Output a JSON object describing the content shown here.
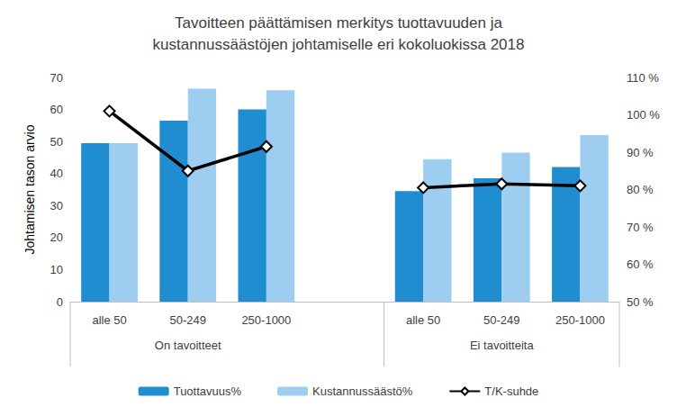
{
  "chart_data": {
    "type": "bar",
    "title": "Tavoitteen päättämisen merkitys tuottavuuden ja\nkustannussäästöjen johtamiselle eri kokoluokissa 2018",
    "y_label": "Johtamisen tason arvio",
    "groups": [
      {
        "label": "On tavoitteet",
        "categories": [
          "alle 50",
          "50-249",
          "250-1000"
        ]
      },
      {
        "label": "Ei tavoitteita",
        "categories": [
          "alle 50",
          "50-249",
          "250-1000"
        ]
      }
    ],
    "series": [
      {
        "name": "Tuottavuus%",
        "type": "bar",
        "color": "#1f8dd0",
        "values": [
          49.5,
          56.5,
          60,
          34.5,
          38.5,
          42
        ]
      },
      {
        "name": "Kustannussäästö%",
        "type": "bar",
        "color": "#9dcdf0",
        "values": [
          49.5,
          66.5,
          66,
          44.5,
          46.5,
          52
        ]
      },
      {
        "name": "T/K-suhde",
        "type": "line",
        "axis": "y2",
        "color": "#000000",
        "marker": "diamond",
        "values": [
          101,
          85,
          91.5,
          80.5,
          81.5,
          81
        ]
      }
    ],
    "ylim": [
      0,
      70
    ],
    "yticks": [
      0,
      10,
      20,
      30,
      40,
      50,
      60,
      70
    ],
    "y2lim": [
      50,
      110
    ],
    "y2ticks": [
      {
        "value": 50,
        "label": "50 %"
      },
      {
        "value": 60,
        "label": "60 %"
      },
      {
        "value": 70,
        "label": "70 %"
      },
      {
        "value": 80,
        "label": "80 %"
      },
      {
        "value": 90,
        "label": "90 %"
      },
      {
        "value": 100,
        "label": "100 %"
      },
      {
        "value": 110,
        "label": "110 %"
      }
    ],
    "grid": false,
    "legend": "bottom"
  }
}
